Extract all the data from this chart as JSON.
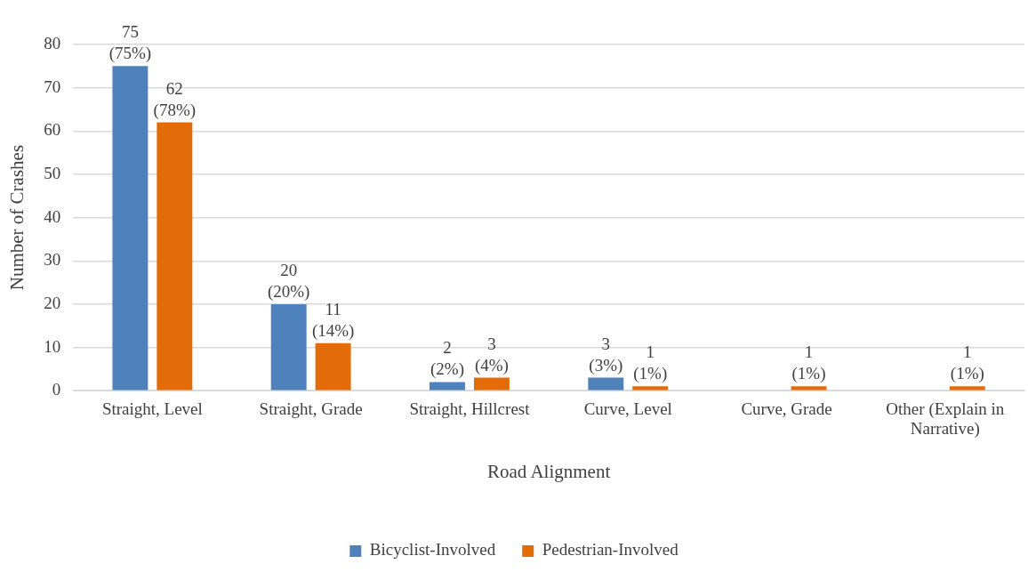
{
  "chart_data": {
    "type": "bar",
    "xlabel": "Road Alignment",
    "ylabel": "Number of Crashes",
    "categories": [
      "Straight, Level",
      "Straight, Grade",
      "Straight, Hillcrest",
      "Curve, Level",
      "Curve, Grade",
      "Other (Explain in Narrative)"
    ],
    "series": [
      {
        "name": "Bicyclist-Involved",
        "color": "#4f81bd",
        "values": [
          75,
          20,
          2,
          3,
          null,
          null
        ],
        "value_labels": [
          "75 (75%)",
          "20 (20%)",
          "2 (2%)",
          "3 (3%)",
          null,
          null
        ]
      },
      {
        "name": "Pedestrian-Involved",
        "color": "#e36c09",
        "values": [
          62,
          11,
          3,
          1,
          1,
          1
        ],
        "value_labels": [
          "62 (78%)",
          "11 (14%)",
          "3 (4%)",
          "1 (1%)",
          "1 (1%)",
          "1 (1%)"
        ]
      }
    ],
    "ylim": [
      0,
      80
    ],
    "yticks": [
      0,
      10,
      20,
      30,
      40,
      50,
      60,
      70,
      80
    ],
    "grid": "y",
    "legend": "bottom"
  }
}
